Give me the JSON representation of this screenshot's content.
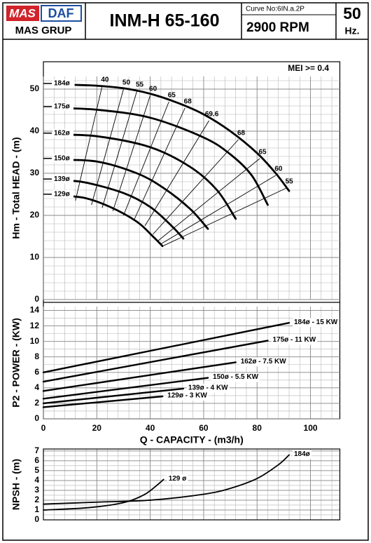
{
  "header": {
    "logo_left": "MAS",
    "logo_right": "DAF",
    "logo_bottom": "MAS GRUP",
    "model": "INM-H 65-160",
    "curve_no": "Curve No:6IN.a.2P",
    "speed": "2900 RPM",
    "frequency": "50",
    "frequency_unit": "Hz."
  },
  "chart_data": [
    {
      "type": "line",
      "ylabel": "Hm - Total HEAD - (m)",
      "annotation": "MEI >= 0.4",
      "grid": true,
      "xlim": [
        0,
        111
      ],
      "xticks": [
        0,
        20,
        40,
        60,
        80,
        100
      ],
      "ylim": [
        0,
        53
      ],
      "yticks": [
        0,
        10,
        20,
        30,
        40,
        50
      ],
      "series": [
        {
          "name": "184ø",
          "color": "#000000",
          "x": [
            12,
            20,
            30,
            40,
            50,
            60,
            70,
            80,
            87,
            92
          ],
          "values": [
            51,
            50.8,
            50.2,
            48.9,
            46.8,
            44,
            40,
            34.8,
            30,
            25.8
          ]
        },
        {
          "name": "175ø",
          "color": "#000000",
          "x": [
            4.5,
            20,
            40,
            60,
            70,
            78,
            84
          ],
          "values": [
            45.5,
            45.1,
            43.2,
            38.5,
            34.5,
            29.5,
            22.5
          ]
        },
        {
          "name": "162ø",
          "color": "#000000",
          "x": [
            4.5,
            20,
            40,
            55,
            65,
            72
          ],
          "values": [
            39.2,
            38.8,
            36.2,
            31.5,
            26,
            19.2
          ]
        },
        {
          "name": "150ø",
          "color": "#000000",
          "x": [
            4.5,
            20,
            35,
            45,
            55,
            61.6
          ],
          "values": [
            33.2,
            32.8,
            30,
            26.5,
            21.5,
            16.8
          ]
        },
        {
          "name": "139ø",
          "color": "#000000",
          "x": [
            4.5,
            15,
            30,
            40,
            48,
            52.4
          ],
          "values": [
            28.3,
            27.9,
            25.3,
            22,
            17.5,
            14.5
          ]
        },
        {
          "name": "129ø",
          "color": "#000000",
          "x": [
            4.5,
            15,
            25,
            35,
            41,
            44.6
          ],
          "values": [
            24.7,
            24.2,
            22,
            18.5,
            15,
            12.7
          ]
        }
      ],
      "efficiency_lines": [
        {
          "label": 40,
          "x": [
            22,
            12
          ],
          "values": [
            50.7,
            23.5
          ]
        },
        {
          "label": 50,
          "x": [
            30,
            18
          ],
          "values": [
            50,
            22.5
          ]
        },
        {
          "label": 55,
          "x": [
            35,
            22
          ],
          "values": [
            49.5,
            21.8
          ]
        },
        {
          "label": 60,
          "x": [
            40,
            26
          ],
          "values": [
            48.5,
            21
          ]
        },
        {
          "label": 65,
          "x": [
            47,
            30
          ],
          "values": [
            47,
            20
          ]
        },
        {
          "label": 68,
          "x": [
            53,
            34
          ],
          "values": [
            45.5,
            19
          ]
        },
        {
          "label": 69.6,
          "x": [
            62,
            38
          ],
          "values": [
            42.5,
            17.5
          ]
        },
        {
          "label": 68,
          "x": [
            73,
            41
          ],
          "values": [
            38,
            15.5
          ]
        },
        {
          "label": 65,
          "x": [
            81,
            43
          ],
          "values": [
            33.5,
            14
          ]
        },
        {
          "label": 60,
          "x": [
            87,
            44
          ],
          "values": [
            29.5,
            13.2
          ]
        },
        {
          "label": 55,
          "x": [
            91,
            45
          ],
          "values": [
            26.5,
            12.8
          ]
        }
      ]
    },
    {
      "type": "line",
      "ylabel": "P2 - POWER - (KW)",
      "xlabel": "Q - CAPACITY - (m3/h)",
      "grid": true,
      "xlim": [
        0,
        111
      ],
      "xticks": [
        0,
        20,
        40,
        60,
        80,
        100
      ],
      "ylim": [
        0,
        14.5
      ],
      "yticks": [
        0,
        2,
        4,
        6,
        8,
        10,
        12,
        14
      ],
      "series": [
        {
          "name": "184ø - 15 KW",
          "color": "#000000",
          "x": [
            0,
            92
          ],
          "values": [
            6.0,
            12.4
          ]
        },
        {
          "name": "175ø - 11 KW",
          "color": "#000000",
          "x": [
            0,
            84
          ],
          "values": [
            4.8,
            10.1
          ]
        },
        {
          "name": "162ø - 7.5 KW",
          "color": "#000000",
          "x": [
            0,
            72
          ],
          "values": [
            3.6,
            7.3
          ]
        },
        {
          "name": "150ø - 5.5 KW",
          "color": "#000000",
          "x": [
            0,
            61.6
          ],
          "values": [
            2.6,
            5.3
          ]
        },
        {
          "name": "139ø - 4 KW",
          "color": "#000000",
          "x": [
            0,
            52.4
          ],
          "values": [
            2.0,
            3.9
          ]
        },
        {
          "name": "129ø - 3 KW",
          "color": "#000000",
          "x": [
            0,
            44.6
          ],
          "values": [
            1.5,
            2.9
          ]
        }
      ]
    },
    {
      "type": "line",
      "ylabel": "NPSH - (m)",
      "grid": true,
      "xlim": [
        0,
        111
      ],
      "xticks": [
        0,
        20,
        40,
        60,
        80,
        100
      ],
      "ylim": [
        0,
        7.2
      ],
      "yticks": [
        0,
        1,
        2,
        3,
        4,
        5,
        6,
        7
      ],
      "series": [
        {
          "name": "184ø",
          "color": "#000000",
          "x": [
            0,
            20,
            40,
            60,
            70,
            80,
            88,
            92
          ],
          "values": [
            1.6,
            1.8,
            2.0,
            2.6,
            3.2,
            4.2,
            5.6,
            6.6
          ]
        },
        {
          "name": "129 ø",
          "color": "#000000",
          "x": [
            0,
            15,
            25,
            32,
            38,
            42,
            45
          ],
          "values": [
            1.0,
            1.2,
            1.5,
            1.9,
            2.6,
            3.4,
            4.1
          ]
        }
      ]
    }
  ]
}
